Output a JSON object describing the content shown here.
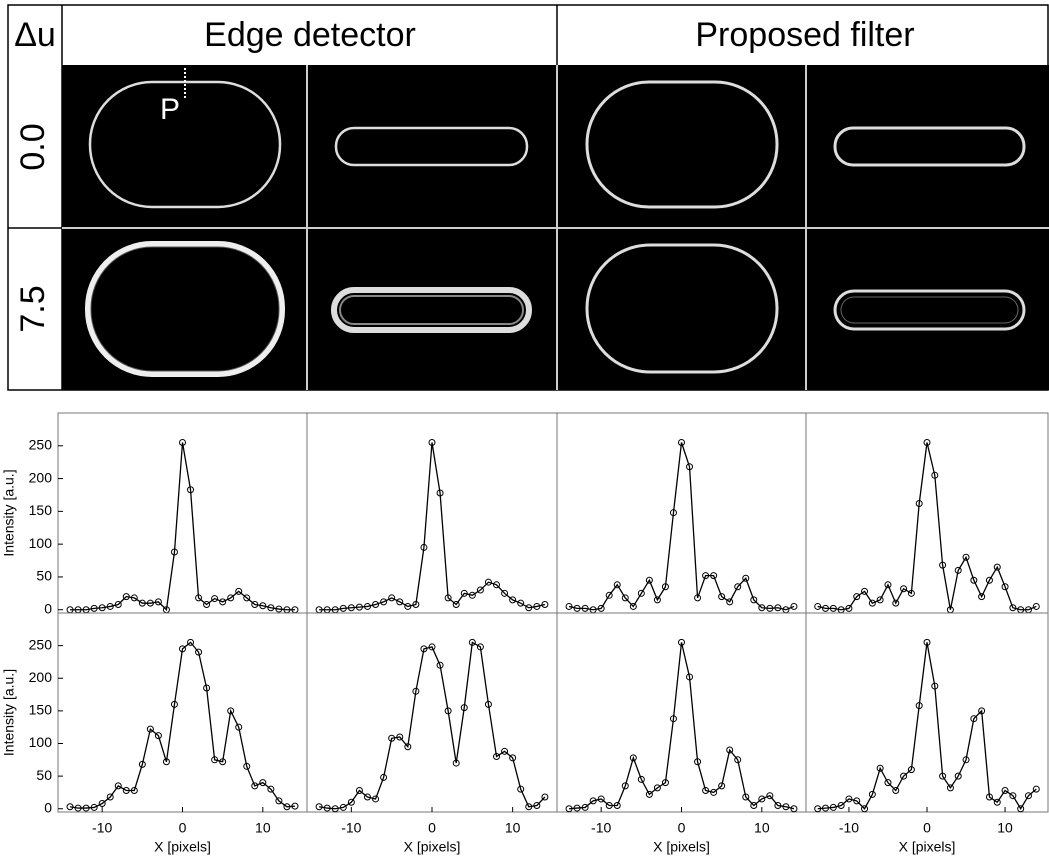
{
  "table": {
    "corner": "Δu",
    "columns": [
      "Edge detector",
      "Proposed filter"
    ],
    "rows": [
      "0.0",
      "7.5"
    ],
    "marker": "P"
  },
  "chart_data": [
    {
      "type": "line",
      "ylabel": "Intensity [a.u.]",
      "x": [
        -14,
        -13,
        -12,
        -11,
        -10,
        -9,
        -8,
        -7,
        -6,
        -5,
        -4,
        -3,
        -2,
        -1,
        0,
        1,
        2,
        3,
        4,
        5,
        6,
        7,
        8,
        9,
        10,
        11,
        12,
        13,
        14
      ],
      "values": [
        0,
        0,
        0,
        2,
        3,
        5,
        8,
        20,
        18,
        10,
        10,
        12,
        0,
        88,
        255,
        183,
        18,
        8,
        17,
        12,
        18,
        28,
        18,
        8,
        6,
        3,
        1,
        0,
        0
      ],
      "color": "#000000",
      "xlim": [
        -15.5,
        15.5
      ],
      "ylim": [
        -5,
        300
      ],
      "yticks": [
        0,
        50,
        100,
        150,
        200,
        250
      ]
    },
    {
      "type": "line",
      "x": [
        -14,
        -13,
        -12,
        -11,
        -10,
        -9,
        -8,
        -7,
        -6,
        -5,
        -4,
        -3,
        -2,
        -1,
        0,
        1,
        2,
        3,
        4,
        5,
        6,
        7,
        8,
        9,
        10,
        11,
        12,
        13,
        14
      ],
      "values": [
        0,
        0,
        0,
        2,
        3,
        4,
        5,
        8,
        12,
        18,
        12,
        5,
        8,
        95,
        255,
        178,
        18,
        8,
        25,
        22,
        30,
        42,
        38,
        25,
        15,
        10,
        3,
        5,
        8
      ],
      "color": "#000000",
      "xlim": [
        -15.5,
        15.5
      ],
      "ylim": [
        -5,
        300
      ]
    },
    {
      "type": "line",
      "x": [
        -14,
        -13,
        -12,
        -11,
        -10,
        -9,
        -8,
        -7,
        -6,
        -5,
        -4,
        -3,
        -2,
        -1,
        0,
        1,
        2,
        3,
        4,
        5,
        6,
        7,
        8,
        9,
        10,
        11,
        12,
        13,
        14
      ],
      "values": [
        5,
        2,
        2,
        0,
        2,
        22,
        38,
        18,
        5,
        25,
        45,
        15,
        35,
        148,
        255,
        218,
        18,
        52,
        52,
        20,
        12,
        35,
        48,
        15,
        3,
        2,
        3,
        0,
        5
      ],
      "color": "#000000",
      "xlim": [
        -15.5,
        15.5
      ],
      "ylim": [
        -5,
        300
      ]
    },
    {
      "type": "line",
      "x": [
        -14,
        -13,
        -12,
        -11,
        -10,
        -9,
        -8,
        -7,
        -6,
        -5,
        -4,
        -3,
        -2,
        -1,
        0,
        1,
        2,
        3,
        4,
        5,
        6,
        7,
        8,
        9,
        10,
        11,
        12,
        13,
        14
      ],
      "values": [
        5,
        2,
        2,
        0,
        2,
        20,
        28,
        10,
        15,
        38,
        10,
        32,
        25,
        162,
        255,
        205,
        68,
        0,
        60,
        80,
        45,
        20,
        45,
        65,
        35,
        3,
        0,
        0,
        5
      ],
      "color": "#000000",
      "xlim": [
        -15.5,
        15.5
      ],
      "ylim": [
        -5,
        300
      ]
    },
    {
      "type": "line",
      "ylabel": "Intensity [a.u.]",
      "xlabel": "X [pixels]",
      "x": [
        -14,
        -13,
        -12,
        -11,
        -10,
        -9,
        -8,
        -7,
        -6,
        -5,
        -4,
        -3,
        -2,
        -1,
        0,
        1,
        2,
        3,
        4,
        5,
        6,
        7,
        8,
        9,
        10,
        11,
        12,
        13,
        14
      ],
      "values": [
        3,
        1,
        1,
        2,
        8,
        18,
        35,
        28,
        28,
        68,
        122,
        112,
        72,
        160,
        245,
        255,
        240,
        185,
        75,
        72,
        150,
        125,
        65,
        35,
        40,
        30,
        12,
        3,
        4
      ],
      "color": "#000000",
      "xlim": [
        -15.5,
        15.5
      ],
      "ylim": [
        -5,
        300
      ],
      "xticks": [
        -10,
        0,
        10
      ],
      "yticks": [
        0,
        50,
        100,
        150,
        200,
        250
      ]
    },
    {
      "type": "line",
      "xlabel": "X [pixels]",
      "x": [
        -14,
        -13,
        -12,
        -11,
        -10,
        -9,
        -8,
        -7,
        -6,
        -5,
        -4,
        -3,
        -2,
        -1,
        0,
        1,
        2,
        3,
        4,
        5,
        6,
        7,
        8,
        9,
        10,
        11,
        12,
        13,
        14
      ],
      "values": [
        3,
        1,
        0,
        2,
        10,
        28,
        18,
        15,
        48,
        108,
        110,
        95,
        180,
        245,
        248,
        220,
        150,
        70,
        155,
        255,
        248,
        160,
        80,
        88,
        78,
        30,
        3,
        5,
        18
      ],
      "color": "#000000",
      "xlim": [
        -15.5,
        15.5
      ],
      "ylim": [
        -5,
        300
      ],
      "xticks": [
        -10,
        0,
        10
      ]
    },
    {
      "type": "line",
      "xlabel": "X [pixels]",
      "x": [
        -14,
        -13,
        -12,
        -11,
        -10,
        -9,
        -8,
        -7,
        -6,
        -5,
        -4,
        -3,
        -2,
        -1,
        0,
        1,
        2,
        3,
        4,
        5,
        6,
        7,
        8,
        9,
        10,
        11,
        12,
        13,
        14
      ],
      "values": [
        0,
        1,
        2,
        12,
        15,
        5,
        5,
        35,
        78,
        45,
        22,
        32,
        40,
        138,
        255,
        202,
        72,
        28,
        25,
        35,
        90,
        75,
        18,
        5,
        15,
        20,
        5,
        3,
        0
      ],
      "color": "#000000",
      "xlim": [
        -15.5,
        15.5
      ],
      "ylim": [
        -5,
        300
      ],
      "xticks": [
        -10,
        0,
        10
      ]
    },
    {
      "type": "line",
      "xlabel": "X [pixels]",
      "x": [
        -14,
        -13,
        -12,
        -11,
        -10,
        -9,
        -8,
        -7,
        -6,
        -5,
        -4,
        -3,
        -2,
        -1,
        0,
        1,
        2,
        3,
        4,
        5,
        6,
        7,
        8,
        9,
        10,
        11,
        12,
        13,
        14
      ],
      "values": [
        0,
        1,
        2,
        5,
        15,
        12,
        0,
        22,
        62,
        40,
        28,
        50,
        60,
        158,
        255,
        188,
        50,
        32,
        50,
        75,
        138,
        150,
        18,
        10,
        28,
        20,
        0,
        20,
        30
      ],
      "color": "#000000",
      "xlim": [
        -15.5,
        15.5
      ],
      "ylim": [
        -5,
        300
      ],
      "xticks": [
        -10,
        0,
        10
      ]
    }
  ]
}
